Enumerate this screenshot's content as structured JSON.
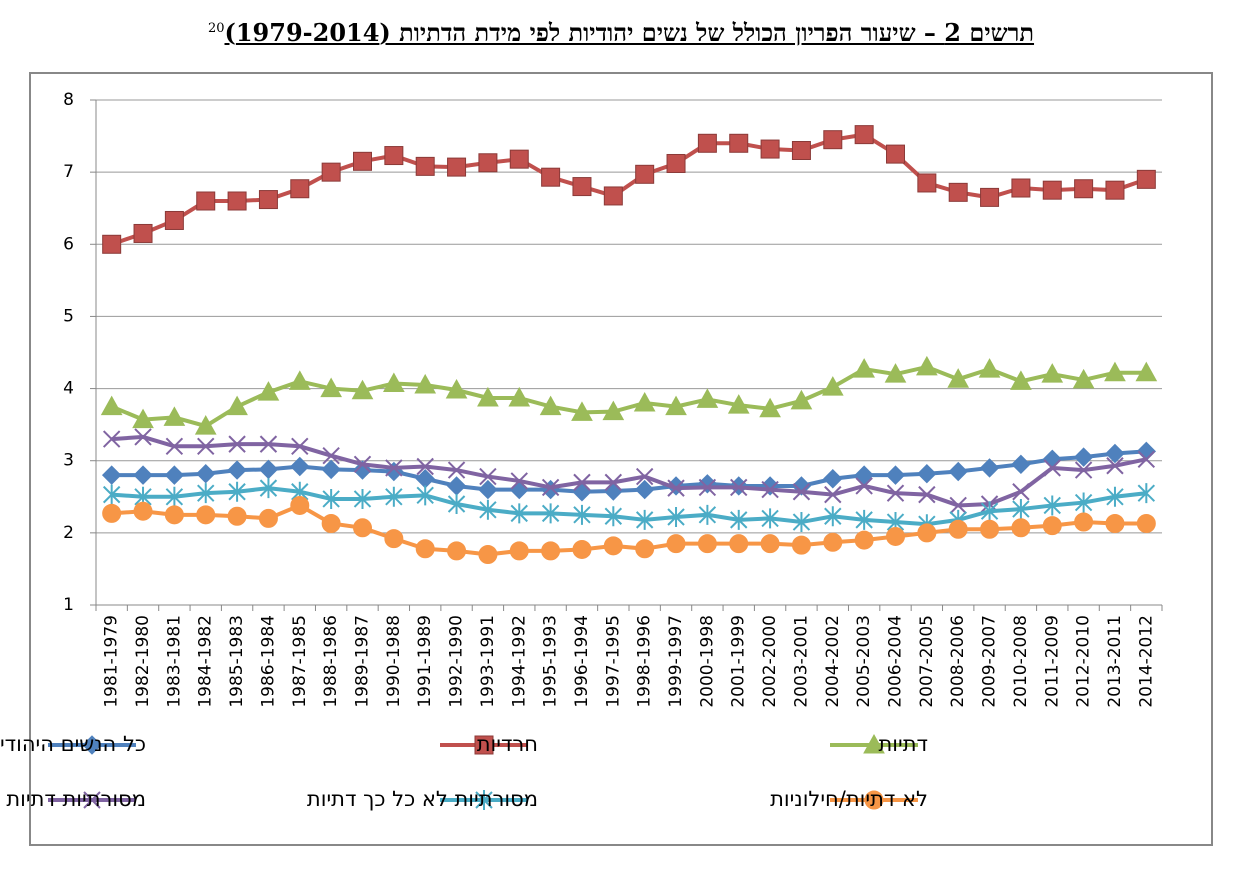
{
  "chart_data": {
    "type": "line",
    "title": "תרשים 2 – שיעור הפריון הכולל של נשים יהודיות לפי מידת הדתיות (1979-2014)",
    "footnote_ref": "20",
    "categories": [
      "1981-1979",
      "1982-1980",
      "1983-1981",
      "1984-1982",
      "1985-1983",
      "1986-1984",
      "1987-1985",
      "1988-1986",
      "1989-1987",
      "1990-1988",
      "1991-1989",
      "1992-1990",
      "1993-1991",
      "1994-1992",
      "1995-1993",
      "1996-1994",
      "1997-1995",
      "1998-1996",
      "1999-1997",
      "2000-1998",
      "2001-1999",
      "2002-2000",
      "2003-2001",
      "2004-2002",
      "2005-2003",
      "2006-2004",
      "2007-2005",
      "2008-2006",
      "2009-2007",
      "2010-2008",
      "2011-2009",
      "2012-2010",
      "2013-2011",
      "2014-2012"
    ],
    "ylim": [
      1,
      8
    ],
    "yticks": [
      1,
      2,
      3,
      4,
      5,
      6,
      7,
      8
    ],
    "grid": true,
    "series": [
      {
        "name": "כל הנשים היהודיות",
        "color": "#4f81bd",
        "marker": "diamond",
        "values": [
          2.8,
          2.8,
          2.8,
          2.82,
          2.87,
          2.88,
          2.92,
          2.88,
          2.87,
          2.85,
          2.75,
          2.65,
          2.6,
          2.6,
          2.6,
          2.57,
          2.58,
          2.6,
          2.65,
          2.68,
          2.65,
          2.65,
          2.65,
          2.75,
          2.8,
          2.8,
          2.82,
          2.85,
          2.9,
          2.95,
          3.02,
          3.05,
          3.1,
          3.13
        ]
      },
      {
        "name": "חרדיות",
        "color": "#c0504d",
        "marker": "square",
        "values": [
          6.0,
          6.15,
          6.33,
          6.6,
          6.6,
          6.62,
          6.77,
          7.0,
          7.15,
          7.23,
          7.08,
          7.07,
          7.13,
          7.18,
          6.93,
          6.8,
          6.67,
          6.97,
          7.12,
          7.4,
          7.4,
          7.32,
          7.3,
          7.45,
          7.52,
          7.25,
          6.85,
          6.72,
          6.65,
          6.78,
          6.75,
          6.77,
          6.75,
          6.9
        ]
      },
      {
        "name": "דתיות",
        "color": "#9bbb59",
        "marker": "triangle",
        "values": [
          3.75,
          3.57,
          3.6,
          3.48,
          3.75,
          3.95,
          4.1,
          4.0,
          3.97,
          4.07,
          4.05,
          3.98,
          3.87,
          3.87,
          3.75,
          3.67,
          3.68,
          3.8,
          3.75,
          3.85,
          3.77,
          3.72,
          3.83,
          4.02,
          4.27,
          4.2,
          4.3,
          4.13,
          4.27,
          4.1,
          4.2,
          4.12,
          4.22,
          4.22
        ]
      },
      {
        "name": "מסורתיות דתיות",
        "color": "#8064a2",
        "marker": "x",
        "values": [
          3.3,
          3.33,
          3.2,
          3.2,
          3.23,
          3.23,
          3.2,
          3.07,
          2.95,
          2.9,
          2.92,
          2.87,
          2.78,
          2.72,
          2.63,
          2.7,
          2.7,
          2.78,
          2.62,
          2.63,
          2.63,
          2.6,
          2.57,
          2.53,
          2.65,
          2.55,
          2.53,
          2.38,
          2.4,
          2.57,
          2.9,
          2.87,
          2.93,
          3.02
        ]
      },
      {
        "name": "מסורתיות לא כל כך דתיות",
        "color": "#4bacc6",
        "marker": "asterisk",
        "values": [
          2.53,
          2.5,
          2.5,
          2.55,
          2.57,
          2.62,
          2.57,
          2.47,
          2.47,
          2.5,
          2.52,
          2.4,
          2.32,
          2.27,
          2.27,
          2.25,
          2.23,
          2.18,
          2.22,
          2.25,
          2.18,
          2.2,
          2.15,
          2.23,
          2.18,
          2.15,
          2.12,
          2.18,
          2.3,
          2.33,
          2.38,
          2.42,
          2.5,
          2.55
        ]
      },
      {
        "name": "לא דתיות/חילוניות",
        "color": "#f79646",
        "marker": "circle",
        "values": [
          2.27,
          2.3,
          2.25,
          2.25,
          2.23,
          2.2,
          2.38,
          2.13,
          2.07,
          1.92,
          1.78,
          1.75,
          1.7,
          1.75,
          1.75,
          1.77,
          1.82,
          1.78,
          1.85,
          1.85,
          1.85,
          1.85,
          1.83,
          1.87,
          1.9,
          1.95,
          2.0,
          2.05,
          2.05,
          2.07,
          2.1,
          2.15,
          2.13,
          2.13
        ]
      }
    ]
  }
}
